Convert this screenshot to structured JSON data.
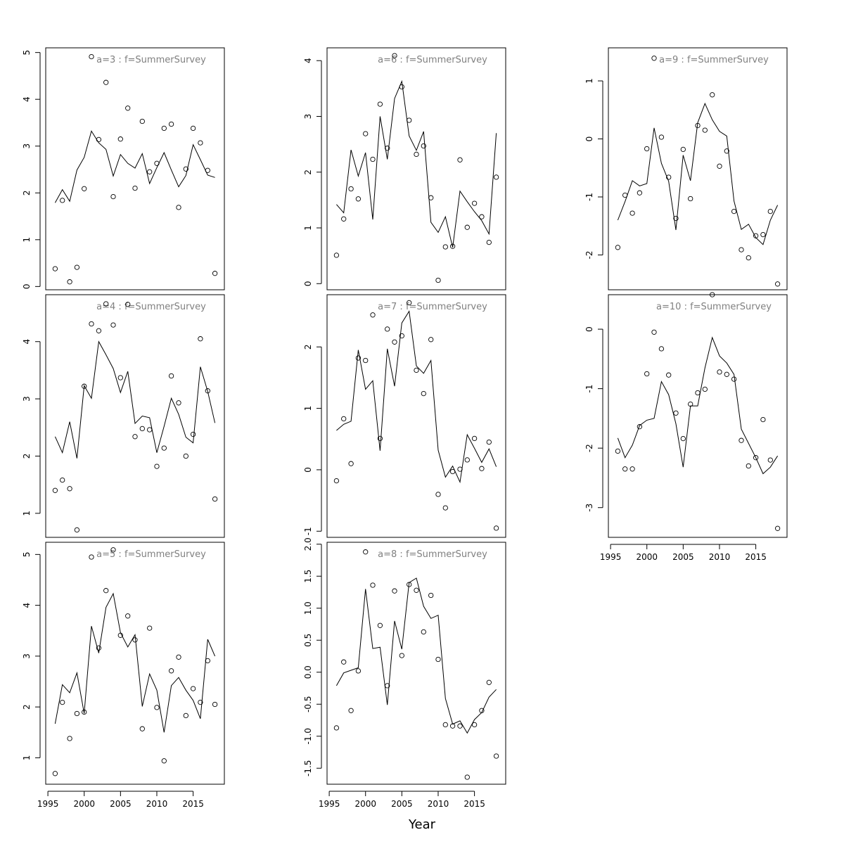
{
  "xlabel": "Year",
  "chart_data": [
    {
      "type": "line+scatter",
      "title": "a=3  :  f=SummerSurvey",
      "xlim": [
        1994.7,
        2019.3
      ],
      "ylim": [
        -0.07,
        5.1
      ],
      "yticks": [
        0,
        1,
        2,
        3,
        4,
        5
      ],
      "xticks": [],
      "x": [
        1996,
        1997,
        1998,
        1999,
        2000,
        2001,
        2002,
        2003,
        2004,
        2005,
        2006,
        2007,
        2008,
        2009,
        2010,
        2011,
        2012,
        2013,
        2014,
        2015,
        2016,
        2017,
        2018
      ],
      "observed": [
        0.38,
        1.84,
        0.1,
        0.41,
        2.09,
        4.91,
        3.14,
        4.36,
        1.92,
        3.15,
        3.81,
        2.1,
        3.53,
        2.45,
        2.63,
        3.38,
        3.47,
        1.69,
        2.51,
        3.38,
        3.07,
        2.48,
        0.28
      ],
      "fitted": [
        1.79,
        2.07,
        1.82,
        2.49,
        2.76,
        3.32,
        3.07,
        2.93,
        2.36,
        2.82,
        2.63,
        2.53,
        2.84,
        2.2,
        2.54,
        2.86,
        2.49,
        2.13,
        2.37,
        3.03,
        2.71,
        2.38,
        2.33
      ]
    },
    {
      "type": "line+scatter",
      "title": "a=4  :  f=SummerSurvey",
      "xlim": [
        1994.7,
        2019.3
      ],
      "ylim": [
        0.58,
        4.82
      ],
      "yticks": [
        1,
        2,
        3,
        4
      ],
      "xticks": [],
      "x": [
        1996,
        1997,
        1998,
        1999,
        2000,
        2001,
        2002,
        2003,
        2004,
        2005,
        2006,
        2007,
        2008,
        2009,
        2010,
        2011,
        2012,
        2013,
        2014,
        2015,
        2016,
        2017,
        2018
      ],
      "observed": [
        1.4,
        1.58,
        1.43,
        0.71,
        3.22,
        4.31,
        4.19,
        4.66,
        4.29,
        3.37,
        4.65,
        2.34,
        2.48,
        2.46,
        1.82,
        2.14,
        3.4,
        2.93,
        2.0,
        2.38,
        4.05,
        3.14,
        1.25
      ],
      "fitted": [
        2.34,
        2.06,
        2.6,
        1.96,
        3.23,
        3.01,
        4.0,
        3.77,
        3.53,
        3.11,
        3.48,
        2.57,
        2.7,
        2.67,
        2.06,
        2.52,
        3.01,
        2.73,
        2.33,
        2.23,
        3.56,
        3.13,
        2.58
      ]
    },
    {
      "type": "line+scatter",
      "title": "a=5  :  f=SummerSurvey",
      "xlim": [
        1994.7,
        2019.3
      ],
      "ylim": [
        0.48,
        5.24
      ],
      "yticks": [
        1,
        2,
        3,
        4,
        5
      ],
      "xticks": [
        1995,
        2000,
        2005,
        2010,
        2015
      ],
      "x": [
        1996,
        1997,
        1998,
        1999,
        2000,
        2001,
        2002,
        2003,
        2004,
        2005,
        2006,
        2007,
        2008,
        2009,
        2010,
        2011,
        2012,
        2013,
        2014,
        2015,
        2016,
        2017,
        2018
      ],
      "observed": [
        0.69,
        2.09,
        1.38,
        1.87,
        1.9,
        4.95,
        3.16,
        4.29,
        5.09,
        3.41,
        3.79,
        3.32,
        1.57,
        3.55,
        1.99,
        0.94,
        2.71,
        2.98,
        1.83,
        2.36,
        2.09,
        2.91,
        2.05
      ],
      "fitted": [
        1.67,
        2.44,
        2.28,
        2.67,
        1.87,
        3.59,
        3.06,
        3.96,
        4.23,
        3.46,
        3.18,
        3.42,
        2.01,
        2.65,
        2.33,
        1.5,
        2.42,
        2.58,
        2.33,
        2.13,
        1.77,
        3.33,
        3.0
      ]
    },
    {
      "type": "line+scatter",
      "title": "a=6  :  f=SummerSurvey",
      "xlim": [
        1994.7,
        2019.3
      ],
      "ylim": [
        -0.11,
        4.23
      ],
      "yticks": [
        0,
        1,
        2,
        3,
        4
      ],
      "xticks": [],
      "x": [
        1996,
        1997,
        1998,
        1999,
        2000,
        2001,
        2002,
        2003,
        2004,
        2005,
        2006,
        2007,
        2008,
        2009,
        2010,
        2011,
        2012,
        2013,
        2014,
        2015,
        2016,
        2017,
        2018
      ],
      "observed": [
        0.51,
        1.16,
        1.7,
        1.52,
        2.69,
        2.23,
        3.22,
        2.43,
        4.09,
        3.53,
        2.93,
        2.32,
        2.47,
        1.54,
        0.06,
        0.66,
        0.67,
        2.22,
        1.01,
        1.44,
        1.2,
        0.74,
        1.91
      ],
      "fitted": [
        1.42,
        1.27,
        2.4,
        1.93,
        2.35,
        1.15,
        3.0,
        2.23,
        3.32,
        3.63,
        2.65,
        2.39,
        2.73,
        1.1,
        0.92,
        1.2,
        0.65,
        1.66,
        1.47,
        1.29,
        1.13,
        0.89,
        2.7
      ]
    },
    {
      "type": "line+scatter",
      "title": "a=7  :  f=SummerSurvey",
      "xlim": [
        1994.7,
        2019.3
      ],
      "ylim": [
        -1.1,
        2.85
      ],
      "yticks": [
        -1,
        0,
        1,
        2
      ],
      "xticks": [],
      "x": [
        1996,
        1997,
        1998,
        1999,
        2000,
        2001,
        2002,
        2003,
        2004,
        2005,
        2006,
        2007,
        2008,
        2009,
        2010,
        2011,
        2012,
        2013,
        2014,
        2015,
        2016,
        2017,
        2018
      ],
      "observed": [
        -0.18,
        0.83,
        0.1,
        1.82,
        1.78,
        2.52,
        0.51,
        2.29,
        2.08,
        2.18,
        2.72,
        1.62,
        1.24,
        2.12,
        -0.4,
        -0.62,
        -0.03,
        0.01,
        0.16,
        0.51,
        0.02,
        0.45,
        -0.95
      ],
      "fitted": [
        0.64,
        0.74,
        0.79,
        1.95,
        1.31,
        1.45,
        0.31,
        1.97,
        1.36,
        2.39,
        2.58,
        1.69,
        1.57,
        1.78,
        0.32,
        -0.12,
        0.06,
        -0.2,
        0.57,
        0.35,
        0.12,
        0.34,
        0.05
      ]
    },
    {
      "type": "line+scatter",
      "title": "a=8  :  f=SummerSurvey",
      "xlim": [
        1994.7,
        2019.3
      ],
      "ylim": [
        -1.75,
        2.03
      ],
      "yticks": [
        -1.5,
        -1.0,
        -0.5,
        0.0,
        0.5,
        1.0,
        1.5,
        2.0
      ],
      "xticks": [
        1995,
        2000,
        2005,
        2010,
        2015
      ],
      "x": [
        1996,
        1997,
        1998,
        1999,
        2000,
        2001,
        2002,
        2003,
        2004,
        2005,
        2006,
        2007,
        2008,
        2009,
        2010,
        2011,
        2012,
        2013,
        2014,
        2015,
        2016,
        2017,
        2018
      ],
      "observed": [
        -0.87,
        0.16,
        -0.6,
        0.02,
        1.88,
        1.36,
        0.73,
        -0.21,
        1.27,
        0.26,
        1.37,
        1.28,
        0.63,
        1.2,
        0.2,
        -0.82,
        -0.84,
        -0.84,
        -1.64,
        -0.82,
        -0.6,
        -0.16,
        -1.31
      ],
      "fitted": [
        -0.21,
        -0.01,
        0.03,
        0.07,
        1.3,
        0.37,
        0.39,
        -0.51,
        0.8,
        0.36,
        1.4,
        1.47,
        1.03,
        0.84,
        0.89,
        -0.41,
        -0.81,
        -0.76,
        -0.95,
        -0.74,
        -0.63,
        -0.39,
        -0.27
      ]
    },
    {
      "type": "line+scatter",
      "title": "a=9  :  f=SummerSurvey",
      "xlim": [
        1994.7,
        2019.3
      ],
      "ylim": [
        -2.6,
        1.57
      ],
      "yticks": [
        -2,
        -1,
        0,
        1
      ],
      "xticks": [],
      "x": [
        1996,
        1997,
        1998,
        1999,
        2000,
        2001,
        2002,
        2003,
        2004,
        2005,
        2006,
        2007,
        2008,
        2009,
        2010,
        2011,
        2012,
        2013,
        2014,
        2015,
        2016,
        2017,
        2018
      ],
      "observed": [
        -1.87,
        -0.97,
        -1.28,
        -0.93,
        -0.17,
        1.39,
        0.03,
        -0.66,
        -1.37,
        -0.18,
        -1.03,
        0.23,
        0.15,
        0.76,
        -0.47,
        -0.21,
        -1.25,
        -1.91,
        -2.05,
        -1.67,
        -1.65,
        -1.25,
        -2.5
      ],
      "fitted": [
        -1.4,
        -1.08,
        -0.72,
        -0.81,
        -0.77,
        0.19,
        -0.42,
        -0.73,
        -1.57,
        -0.28,
        -0.72,
        0.28,
        0.61,
        0.33,
        0.13,
        0.05,
        -1.07,
        -1.56,
        -1.47,
        -1.7,
        -1.82,
        -1.4,
        -1.14
      ]
    },
    {
      "type": "line+scatter",
      "title": "a=10  :  f=SummerSurvey",
      "xlim": [
        1994.7,
        2019.3
      ],
      "ylim": [
        -3.5,
        0.58
      ],
      "yticks": [
        -3,
        -2,
        -1,
        0
      ],
      "xticks": [
        1995,
        2000,
        2005,
        2010,
        2015
      ],
      "x": [
        1996,
        1997,
        1998,
        1999,
        2000,
        2001,
        2002,
        2003,
        2004,
        2005,
        2006,
        2007,
        2008,
        2009,
        2010,
        2011,
        2012,
        2013,
        2014,
        2015,
        2016,
        2017,
        2018
      ],
      "observed": [
        -2.05,
        -2.35,
        -2.35,
        -1.64,
        -0.75,
        -0.05,
        -0.33,
        -0.77,
        -1.41,
        -1.84,
        -1.26,
        -1.07,
        -1.01,
        0.58,
        -0.72,
        -0.76,
        -0.84,
        -1.87,
        -2.3,
        -2.16,
        -1.52,
        -2.2,
        -3.35
      ],
      "fitted": [
        -1.83,
        -2.16,
        -1.95,
        -1.62,
        -1.53,
        -1.5,
        -0.88,
        -1.1,
        -1.59,
        -2.32,
        -1.29,
        -1.29,
        -0.65,
        -0.14,
        -0.45,
        -0.57,
        -0.76,
        -1.68,
        -1.92,
        -2.16,
        -2.43,
        -2.32,
        -2.13
      ]
    }
  ]
}
